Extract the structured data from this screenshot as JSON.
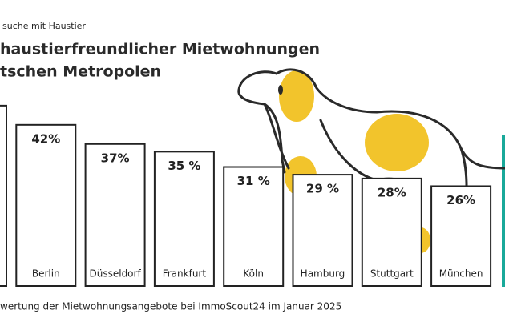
{
  "subtitle": "suche mit Haustier",
  "chart_data": {
    "type": "bar",
    "title_lines": [
      "haustierfreundlicher Mietwohnungen",
      "tschen Metropolen"
    ],
    "categories": [
      null,
      "Berlin",
      "Düsseldorf",
      "Frankfurt",
      "Köln",
      "Hamburg",
      "Stuttgart",
      "München"
    ],
    "values": [
      47,
      42,
      37,
      35,
      31,
      29,
      28,
      26
    ],
    "value_labels": [
      null,
      "42%",
      "37%",
      "35 %",
      "31 %",
      "29 %",
      "28%",
      "26%"
    ],
    "color": "#ffffff",
    "stroke": "#222222"
  },
  "footer": "wertung der Mietwohnungsangebote bei ImmoScout24 im Januar 2025"
}
